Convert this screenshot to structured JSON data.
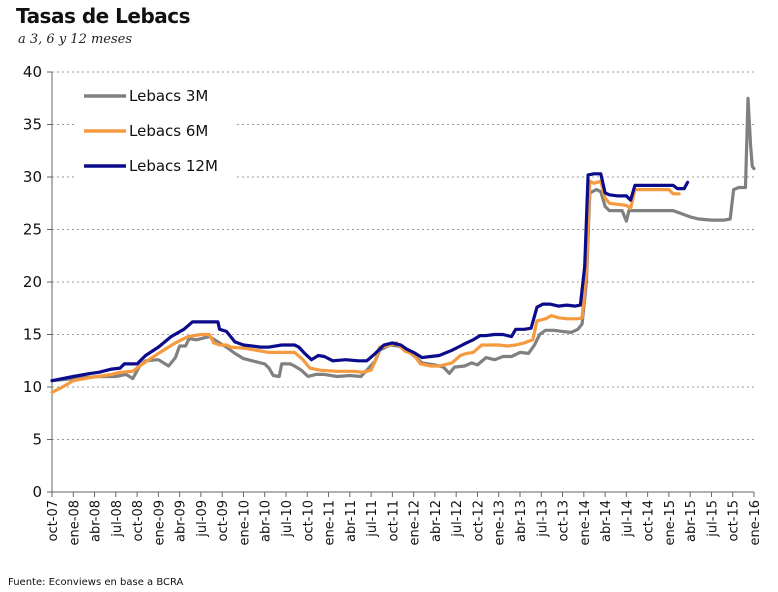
{
  "chart_data": {
    "type": "line",
    "title": "Tasas de Lebacs",
    "subtitle": "a 3, 6 y 12 meses",
    "source": "Fuente: Econviews en base a BCRA",
    "ylim": [
      0,
      40
    ],
    "yticks": [
      0,
      5,
      10,
      15,
      20,
      25,
      30,
      35,
      40
    ],
    "xlim": [
      2007.75,
      2016.0
    ],
    "xtick_labels": [
      "oct-07",
      "ene-08",
      "abr-08",
      "jul-08",
      "oct-08",
      "ene-09",
      "abr-09",
      "jul-09",
      "oct-09",
      "ene-10",
      "abr-10",
      "jul-10",
      "oct-10",
      "ene-11",
      "abr-11",
      "jul-11",
      "oct-11",
      "ene-12",
      "abr-12",
      "jul-12",
      "oct-12",
      "ene-13",
      "abr-13",
      "jul-13",
      "oct-13",
      "ene-14",
      "abr-14",
      "jul-14",
      "oct-14",
      "ene-15",
      "abr-15",
      "jul-15",
      "oct-15",
      "ene-16"
    ],
    "grid": "horizontal-dashed",
    "legend_position": "top-left",
    "series": [
      {
        "name": "Lebacs 3M",
        "color": "#808080",
        "points": [
          [
            2007.75,
            10.6
          ],
          [
            2008.0,
            10.8
          ],
          [
            2008.3,
            11.0
          ],
          [
            2008.5,
            11.0
          ],
          [
            2008.62,
            11.2
          ],
          [
            2008.7,
            10.8
          ],
          [
            2008.78,
            12.0
          ],
          [
            2008.85,
            12.5
          ],
          [
            2009.0,
            12.6
          ],
          [
            2009.12,
            12.0
          ],
          [
            2009.2,
            12.8
          ],
          [
            2009.25,
            13.9
          ],
          [
            2009.32,
            13.9
          ],
          [
            2009.36,
            14.6
          ],
          [
            2009.45,
            14.5
          ],
          [
            2009.55,
            14.7
          ],
          [
            2009.6,
            14.8
          ],
          [
            2009.7,
            14.3
          ],
          [
            2009.8,
            13.8
          ],
          [
            2009.9,
            13.2
          ],
          [
            2010.0,
            12.7
          ],
          [
            2010.15,
            12.4
          ],
          [
            2010.25,
            12.2
          ],
          [
            2010.3,
            11.8
          ],
          [
            2010.35,
            11.1
          ],
          [
            2010.42,
            11.0
          ],
          [
            2010.45,
            12.2
          ],
          [
            2010.55,
            12.2
          ],
          [
            2010.6,
            12.0
          ],
          [
            2010.68,
            11.6
          ],
          [
            2010.76,
            11.0
          ],
          [
            2010.85,
            11.2
          ],
          [
            2010.95,
            11.2
          ],
          [
            2011.1,
            11.0
          ],
          [
            2011.25,
            11.1
          ],
          [
            2011.38,
            11.0
          ],
          [
            2011.45,
            11.6
          ],
          [
            2011.55,
            12.5
          ],
          [
            2011.6,
            13.5
          ],
          [
            2011.72,
            14.0
          ],
          [
            2011.82,
            13.9
          ],
          [
            2011.92,
            13.5
          ],
          [
            2012.0,
            13.0
          ],
          [
            2012.1,
            12.3
          ],
          [
            2012.25,
            12.1
          ],
          [
            2012.35,
            11.9
          ],
          [
            2012.42,
            11.3
          ],
          [
            2012.48,
            11.9
          ],
          [
            2012.6,
            12.0
          ],
          [
            2012.68,
            12.3
          ],
          [
            2012.75,
            12.1
          ],
          [
            2012.85,
            12.8
          ],
          [
            2012.95,
            12.6
          ],
          [
            2013.05,
            12.9
          ],
          [
            2013.15,
            12.9
          ],
          [
            2013.25,
            13.3
          ],
          [
            2013.35,
            13.2
          ],
          [
            2013.42,
            14.0
          ],
          [
            2013.48,
            15.0
          ],
          [
            2013.55,
            15.4
          ],
          [
            2013.65,
            15.4
          ],
          [
            2013.75,
            15.3
          ],
          [
            2013.85,
            15.2
          ],
          [
            2013.93,
            15.5
          ],
          [
            2013.98,
            16.0
          ],
          [
            2014.03,
            20.0
          ],
          [
            2014.07,
            28.5
          ],
          [
            2014.15,
            28.8
          ],
          [
            2014.2,
            28.6
          ],
          [
            2014.25,
            27.2
          ],
          [
            2014.3,
            26.8
          ],
          [
            2014.45,
            26.8
          ],
          [
            2014.5,
            25.8
          ],
          [
            2014.53,
            26.8
          ],
          [
            2014.7,
            26.8
          ],
          [
            2014.85,
            26.8
          ],
          [
            2015.05,
            26.8
          ],
          [
            2015.15,
            26.5
          ],
          [
            2015.25,
            26.2
          ],
          [
            2015.35,
            26.0
          ],
          [
            2015.5,
            25.9
          ],
          [
            2015.65,
            25.9
          ],
          [
            2015.72,
            26.0
          ],
          [
            2015.76,
            28.8
          ],
          [
            2015.82,
            29.0
          ],
          [
            2015.9,
            29.0
          ],
          [
            2015.93,
            37.5
          ],
          [
            2015.96,
            33.0
          ],
          [
            2015.98,
            31.0
          ],
          [
            2016.0,
            30.8
          ]
        ]
      },
      {
        "name": "Lebacs 6M",
        "color": "#F59A3E",
        "points": [
          [
            2007.75,
            9.5
          ],
          [
            2007.85,
            9.9
          ],
          [
            2008.0,
            10.6
          ],
          [
            2008.2,
            10.9
          ],
          [
            2008.45,
            11.2
          ],
          [
            2008.55,
            11.4
          ],
          [
            2008.7,
            11.5
          ],
          [
            2008.78,
            12.0
          ],
          [
            2009.0,
            13.2
          ],
          [
            2009.2,
            14.2
          ],
          [
            2009.35,
            14.8
          ],
          [
            2009.5,
            15.0
          ],
          [
            2009.6,
            15.0
          ],
          [
            2009.65,
            14.2
          ],
          [
            2009.72,
            14.0
          ],
          [
            2009.8,
            14.0
          ],
          [
            2009.85,
            13.8
          ],
          [
            2010.0,
            13.7
          ],
          [
            2010.3,
            13.3
          ],
          [
            2010.6,
            13.3
          ],
          [
            2010.7,
            12.6
          ],
          [
            2010.78,
            11.8
          ],
          [
            2010.9,
            11.6
          ],
          [
            2011.1,
            11.5
          ],
          [
            2011.3,
            11.5
          ],
          [
            2011.4,
            11.4
          ],
          [
            2011.5,
            11.6
          ],
          [
            2011.55,
            12.5
          ],
          [
            2011.6,
            13.8
          ],
          [
            2011.72,
            14.0
          ],
          [
            2011.8,
            14.2
          ],
          [
            2011.9,
            13.4
          ],
          [
            2012.0,
            13.1
          ],
          [
            2012.08,
            12.2
          ],
          [
            2012.2,
            12.0
          ],
          [
            2012.3,
            12.0
          ],
          [
            2012.45,
            12.3
          ],
          [
            2012.55,
            13.0
          ],
          [
            2012.62,
            13.2
          ],
          [
            2012.7,
            13.3
          ],
          [
            2012.8,
            14.0
          ],
          [
            2012.9,
            14.0
          ],
          [
            2013.0,
            14.0
          ],
          [
            2013.1,
            13.9
          ],
          [
            2013.2,
            14.0
          ],
          [
            2013.3,
            14.2
          ],
          [
            2013.4,
            14.5
          ],
          [
            2013.45,
            16.3
          ],
          [
            2013.55,
            16.5
          ],
          [
            2013.62,
            16.8
          ],
          [
            2013.7,
            16.6
          ],
          [
            2013.8,
            16.5
          ],
          [
            2013.93,
            16.5
          ],
          [
            2013.98,
            16.6
          ],
          [
            2014.03,
            21.0
          ],
          [
            2014.07,
            29.6
          ],
          [
            2014.12,
            29.4
          ],
          [
            2014.2,
            29.6
          ],
          [
            2014.25,
            28.0
          ],
          [
            2014.3,
            27.5
          ],
          [
            2014.5,
            27.3
          ],
          [
            2014.55,
            27.0
          ],
          [
            2014.6,
            28.8
          ],
          [
            2014.9,
            28.8
          ],
          [
            2015.0,
            28.8
          ],
          [
            2015.05,
            28.4
          ],
          [
            2015.12,
            28.4
          ]
        ]
      },
      {
        "name": "Lebacs 12M",
        "color": "#0B0B8B",
        "points": [
          [
            2007.75,
            10.6
          ],
          [
            2008.0,
            11.0
          ],
          [
            2008.2,
            11.3
          ],
          [
            2008.3,
            11.4
          ],
          [
            2008.45,
            11.7
          ],
          [
            2008.55,
            11.8
          ],
          [
            2008.6,
            12.2
          ],
          [
            2008.75,
            12.2
          ],
          [
            2008.85,
            13.0
          ],
          [
            2009.0,
            13.8
          ],
          [
            2009.15,
            14.8
          ],
          [
            2009.3,
            15.5
          ],
          [
            2009.4,
            16.2
          ],
          [
            2009.5,
            16.2
          ],
          [
            2009.6,
            16.2
          ],
          [
            2009.7,
            16.2
          ],
          [
            2009.72,
            15.5
          ],
          [
            2009.8,
            15.3
          ],
          [
            2009.9,
            14.3
          ],
          [
            2010.0,
            14.0
          ],
          [
            2010.2,
            13.8
          ],
          [
            2010.3,
            13.8
          ],
          [
            2010.45,
            14.0
          ],
          [
            2010.6,
            14.0
          ],
          [
            2010.65,
            13.8
          ],
          [
            2010.72,
            13.2
          ],
          [
            2010.8,
            12.6
          ],
          [
            2010.88,
            13.0
          ],
          [
            2010.95,
            12.9
          ],
          [
            2011.05,
            12.5
          ],
          [
            2011.2,
            12.6
          ],
          [
            2011.35,
            12.5
          ],
          [
            2011.45,
            12.5
          ],
          [
            2011.55,
            13.2
          ],
          [
            2011.65,
            14.0
          ],
          [
            2011.75,
            14.2
          ],
          [
            2011.85,
            14.0
          ],
          [
            2011.92,
            13.6
          ],
          [
            2012.0,
            13.3
          ],
          [
            2012.1,
            12.8
          ],
          [
            2012.2,
            12.9
          ],
          [
            2012.3,
            13.0
          ],
          [
            2012.45,
            13.5
          ],
          [
            2012.55,
            13.9
          ],
          [
            2012.62,
            14.2
          ],
          [
            2012.7,
            14.5
          ],
          [
            2012.78,
            14.9
          ],
          [
            2012.85,
            14.9
          ],
          [
            2012.95,
            15.0
          ],
          [
            2013.05,
            15.0
          ],
          [
            2013.15,
            14.8
          ],
          [
            2013.2,
            15.5
          ],
          [
            2013.3,
            15.5
          ],
          [
            2013.38,
            15.6
          ],
          [
            2013.45,
            17.6
          ],
          [
            2013.52,
            17.9
          ],
          [
            2013.6,
            17.9
          ],
          [
            2013.7,
            17.7
          ],
          [
            2013.8,
            17.8
          ],
          [
            2013.9,
            17.7
          ],
          [
            2013.96,
            17.8
          ],
          [
            2014.01,
            21.5
          ],
          [
            2014.05,
            30.2
          ],
          [
            2014.12,
            30.3
          ],
          [
            2014.2,
            30.3
          ],
          [
            2014.25,
            28.5
          ],
          [
            2014.3,
            28.3
          ],
          [
            2014.4,
            28.2
          ],
          [
            2014.5,
            28.2
          ],
          [
            2014.55,
            27.8
          ],
          [
            2014.6,
            29.2
          ],
          [
            2014.9,
            29.2
          ],
          [
            2015.05,
            29.2
          ],
          [
            2015.1,
            28.9
          ],
          [
            2015.18,
            28.9
          ],
          [
            2015.22,
            29.5
          ]
        ]
      }
    ]
  }
}
